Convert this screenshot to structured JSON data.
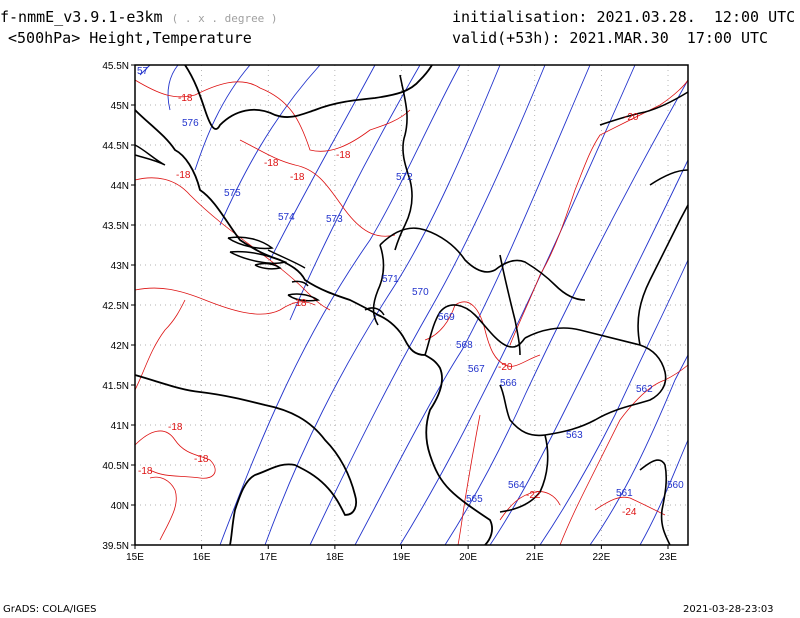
{
  "header": {
    "model": "f-nmmE_v3.9.1-e3km",
    "grid_note": "( . x . degree )",
    "level": "<500hPa> Height,Temperature",
    "init_label": "initialisation:",
    "init_value": "2021.03.28.  12:00 UTC",
    "valid_label": "valid(+53h):",
    "valid_value": "2021.MAR.30  17:00 UTC"
  },
  "footer": {
    "left": "GrADS: COLA/IGES",
    "right": "2021-03-28-23:03"
  },
  "map": {
    "lon_range": [
      15,
      23.3
    ],
    "lat_range": [
      39.5,
      45.5
    ],
    "lon_ticks": [
      "15E",
      "16E",
      "17E",
      "18E",
      "19E",
      "20E",
      "21E",
      "22E",
      "23E"
    ],
    "lat_ticks": [
      "39.5N",
      "40N",
      "40.5N",
      "41N",
      "41.5N",
      "42N",
      "42.5N",
      "43N",
      "43.5N",
      "44N",
      "44.5N",
      "45N",
      "45.5N"
    ],
    "colors": {
      "height": "#2233cc",
      "temperature": "#dd1111",
      "border": "#000000",
      "grid": "#999999"
    },
    "height_labels": [
      "576",
      "575",
      "574",
      "573",
      "572",
      "571",
      "570",
      "569",
      "568",
      "567",
      "566",
      "565",
      "564",
      "563",
      "562",
      "561",
      "560",
      "57"
    ],
    "temperature_labels": [
      "-18",
      "-18",
      "-18",
      "-18",
      "-18",
      "-18",
      "-18",
      "-18",
      "-18",
      "-20",
      "-20",
      "-22",
      "-24"
    ]
  }
}
